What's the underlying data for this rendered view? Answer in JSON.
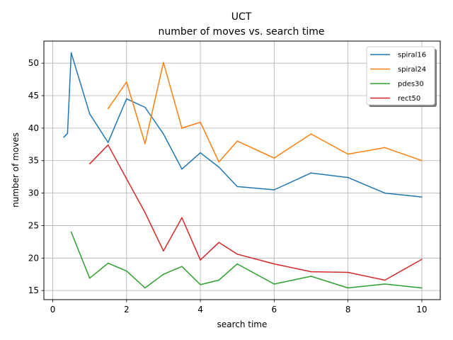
{
  "chart_data": {
    "type": "line",
    "title": "UCT",
    "subtitle": "number of moves vs. search time",
    "xlabel": "search time",
    "ylabel": "number of moves",
    "xlim": [
      -0.24,
      10.5
    ],
    "ylim": [
      13.6,
      53.4
    ],
    "xticks": [
      0,
      2,
      4,
      6,
      8,
      10
    ],
    "yticks": [
      15,
      20,
      25,
      30,
      35,
      40,
      45,
      50
    ],
    "grid": true,
    "legend_position": "top-right",
    "series": [
      {
        "name": "spiral16",
        "color": "#1f77b4",
        "x": [
          0.3,
          0.4,
          0.5,
          1,
          1.5,
          2,
          2.5,
          3,
          3.5,
          4,
          4.5,
          5,
          6,
          7,
          8,
          9,
          10
        ],
        "y": [
          38.6,
          39.2,
          51.6,
          42.2,
          37.8,
          44.5,
          43.2,
          39.1,
          33.7,
          36.2,
          34.0,
          31.0,
          30.5,
          33.1,
          32.4,
          30.0,
          29.4
        ]
      },
      {
        "name": "spiral24",
        "color": "#ff7f0e",
        "x": [
          1.5,
          2,
          2.5,
          3,
          3.5,
          4,
          4.5,
          5,
          6,
          7,
          8,
          9,
          10
        ],
        "y": [
          43.0,
          47.1,
          37.6,
          50.1,
          40.0,
          40.9,
          34.8,
          38.0,
          35.4,
          39.1,
          36.0,
          37.0,
          35.0
        ]
      },
      {
        "name": "pdes30",
        "color": "#2ca02c",
        "x": [
          0.5,
          1,
          1.5,
          2,
          2.5,
          3,
          3.5,
          4,
          4.5,
          5,
          6,
          7,
          8,
          9,
          10
        ],
        "y": [
          24.0,
          16.9,
          19.2,
          18.0,
          15.4,
          17.5,
          18.7,
          15.9,
          16.6,
          19.1,
          16.0,
          17.2,
          15.4,
          16.0,
          15.4
        ]
      },
      {
        "name": "rect50",
        "color": "#d62728",
        "x": [
          1,
          1.5,
          2.5,
          3,
          3.5,
          4,
          4.5,
          5,
          6,
          7,
          8,
          9,
          10
        ],
        "y": [
          34.5,
          37.4,
          27.0,
          21.1,
          26.2,
          19.7,
          22.4,
          20.6,
          19.1,
          17.9,
          17.8,
          16.6,
          19.8
        ]
      }
    ]
  }
}
